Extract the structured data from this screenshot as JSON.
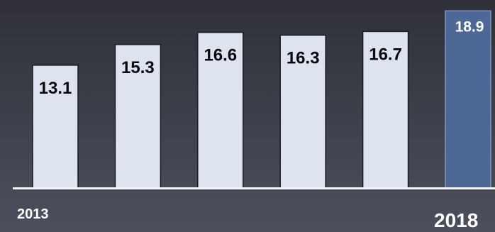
{
  "chart_data": {
    "type": "bar",
    "categories": [
      "2013",
      "",
      "",
      "",
      "",
      "2018"
    ],
    "values": [
      13.1,
      15.3,
      16.6,
      16.3,
      16.7,
      18.9
    ],
    "value_labels": [
      "13.1",
      "15.3",
      "16.6",
      "16.3",
      "16.7",
      "18.9"
    ],
    "title": "",
    "xlabel": "",
    "ylabel": "",
    "ylim": [
      0,
      19.3
    ],
    "grid": false,
    "legend": "none",
    "colors": {
      "background_top": "#2f3038",
      "background_bottom": "#4b505c",
      "bar_fill": "#dde3ef",
      "bar_stroke": "#1a1a1f",
      "highlight_fill": "#4d6896",
      "highlight_stroke": "#7e96c0",
      "value_text_dark": "#0a0a0a",
      "value_text_light": "#ffffff",
      "axis_line": "#f3f3f3",
      "tick_text": "#ffffff"
    }
  }
}
